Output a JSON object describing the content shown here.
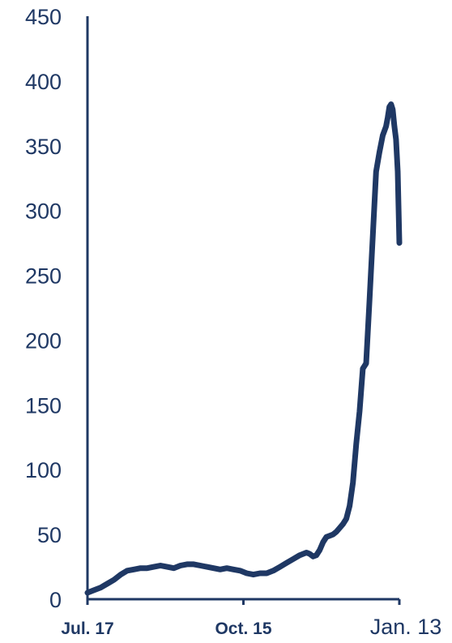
{
  "chart_data": {
    "type": "line",
    "title": "",
    "xlabel": "",
    "ylabel": "",
    "ylim": [
      0,
      450
    ],
    "yticks": [
      0,
      50,
      100,
      150,
      200,
      250,
      300,
      350,
      400,
      450
    ],
    "xticks": [
      "Jul. 17",
      "Oct. 15",
      "Jan. 13"
    ],
    "grid": false,
    "legend": "none",
    "line_color": "#1f3864",
    "series": [
      {
        "values": [
          [
            0,
            5
          ],
          [
            4,
            7
          ],
          [
            8,
            9
          ],
          [
            12,
            12
          ],
          [
            16,
            15
          ],
          [
            20,
            19
          ],
          [
            24,
            22
          ],
          [
            28,
            23
          ],
          [
            32,
            24
          ],
          [
            36,
            24
          ],
          [
            40,
            25
          ],
          [
            44,
            26
          ],
          [
            48,
            25
          ],
          [
            52,
            24
          ],
          [
            56,
            26
          ],
          [
            60,
            27
          ],
          [
            64,
            27
          ],
          [
            68,
            26
          ],
          [
            72,
            25
          ],
          [
            76,
            24
          ],
          [
            80,
            23
          ],
          [
            84,
            24
          ],
          [
            88,
            23
          ],
          [
            92,
            22
          ],
          [
            96,
            20
          ],
          [
            100,
            19
          ],
          [
            104,
            20
          ],
          [
            108,
            20
          ],
          [
            112,
            22
          ],
          [
            116,
            25
          ],
          [
            120,
            28
          ],
          [
            124,
            31
          ],
          [
            128,
            34
          ],
          [
            132,
            36
          ],
          [
            134,
            35
          ],
          [
            136,
            33
          ],
          [
            138,
            34
          ],
          [
            140,
            38
          ],
          [
            142,
            44
          ],
          [
            144,
            48
          ],
          [
            146,
            49
          ],
          [
            148,
            50
          ],
          [
            150,
            52
          ],
          [
            152,
            55
          ],
          [
            154,
            58
          ],
          [
            156,
            62
          ],
          [
            158,
            72
          ],
          [
            160,
            90
          ],
          [
            162,
            120
          ],
          [
            164,
            145
          ],
          [
            166,
            178
          ],
          [
            168,
            182
          ],
          [
            170,
            230
          ],
          [
            172,
            280
          ],
          [
            174,
            330
          ],
          [
            176,
            345
          ],
          [
            178,
            358
          ],
          [
            180,
            365
          ],
          [
            181,
            372
          ],
          [
            182,
            380
          ],
          [
            183,
            382
          ],
          [
            184,
            378
          ],
          [
            185,
            365
          ],
          [
            186,
            355
          ],
          [
            187,
            330
          ],
          [
            188,
            275
          ]
        ]
      }
    ]
  }
}
